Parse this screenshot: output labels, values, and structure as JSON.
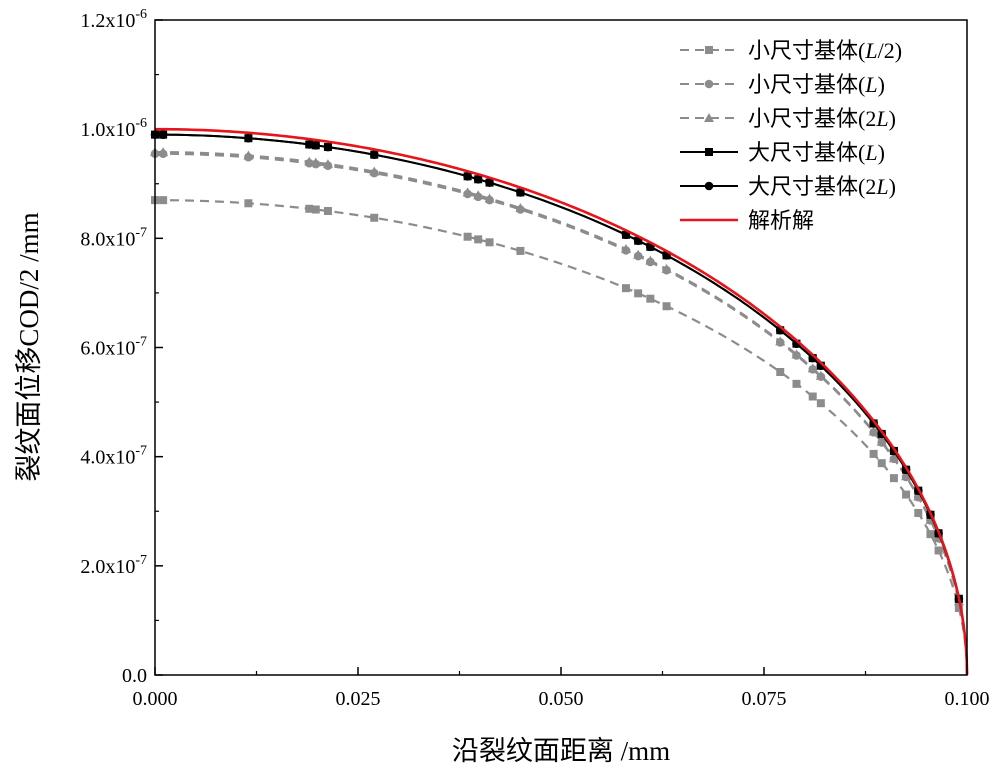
{
  "chart_data": {
    "type": "line",
    "title": "",
    "xlabel": "沿裂纹面距离 /mm",
    "ylabel": "裂纹面位移COD/2 /mm",
    "xlim": [
      0,
      0.1
    ],
    "ylim": [
      0,
      1.2e-06
    ],
    "x_ticks": [
      0.0,
      0.025,
      0.05,
      0.075,
      0.1
    ],
    "x_tick_labels": [
      "0.000",
      "0.025",
      "0.050",
      "0.075",
      "0.100"
    ],
    "y_ticks": [
      {
        "value": 0,
        "mantissa": "0.0",
        "exponent": ""
      },
      {
        "value": 2e-07,
        "mantissa": "2.0x10",
        "exponent": "-7"
      },
      {
        "value": 4e-07,
        "mantissa": "4.0x10",
        "exponent": "-7"
      },
      {
        "value": 6e-07,
        "mantissa": "6.0x10",
        "exponent": "-7"
      },
      {
        "value": 8e-07,
        "mantissa": "8.0x10",
        "exponent": "-7"
      },
      {
        "value": 1e-06,
        "mantissa": "1.0x10",
        "exponent": "-6"
      },
      {
        "value": 1.2e-06,
        "mantissa": "1.2x10",
        "exponent": "-6"
      }
    ],
    "legend_position": "top-right",
    "series": [
      {
        "name": "小尺寸基体(L/2)",
        "legend_prefix": "小尺寸基体(",
        "legend_italic": "L",
        "legend_suffix": "/2)",
        "color": "#8c8c8c",
        "line_style": "dashed",
        "marker": "square",
        "scale": 0.87
      },
      {
        "name": "小尺寸基体(L)",
        "legend_prefix": "小尺寸基体(",
        "legend_italic": "L",
        "legend_suffix": ")",
        "color": "#8c8c8c",
        "line_style": "dashed",
        "marker": "circle",
        "scale": 0.955
      },
      {
        "name": "小尺寸基体(2L)",
        "legend_prefix": "小尺寸基体(2",
        "legend_italic": "L",
        "legend_suffix": ")",
        "color": "#8c8c8c",
        "line_style": "dashed",
        "marker": "triangle",
        "scale": 0.958
      },
      {
        "name": "大尺寸基体(L)",
        "legend_prefix": "大尺寸基体(",
        "legend_italic": "L",
        "legend_suffix": ")",
        "color": "#000000",
        "line_style": "solid",
        "marker": "square",
        "scale": 0.99
      },
      {
        "name": "大尺寸基体(2L)",
        "legend_prefix": "大尺寸基体(2",
        "legend_italic": "L",
        "legend_suffix": ")",
        "color": "#000000",
        "line_style": "solid",
        "marker": "circle",
        "scale": 0.99
      },
      {
        "name": "解析解",
        "legend_prefix": "解析解",
        "legend_italic": "",
        "legend_suffix": "",
        "color": "#e8141b",
        "line_style": "solid",
        "marker": "none",
        "scale": 1.0
      }
    ],
    "curve_model": "y = scale * 1e-6 * sqrt(1 - (x/0.1)^2)",
    "marker_x": [
      0.0,
      0.001,
      0.0115,
      0.019,
      0.0198,
      0.0213,
      0.027,
      0.0385,
      0.0398,
      0.0412,
      0.045,
      0.058,
      0.0595,
      0.061,
      0.063,
      0.077,
      0.079,
      0.081,
      0.082,
      0.0885,
      0.0895,
      0.091,
      0.0925,
      0.094,
      0.0955,
      0.0965,
      0.099
    ]
  }
}
